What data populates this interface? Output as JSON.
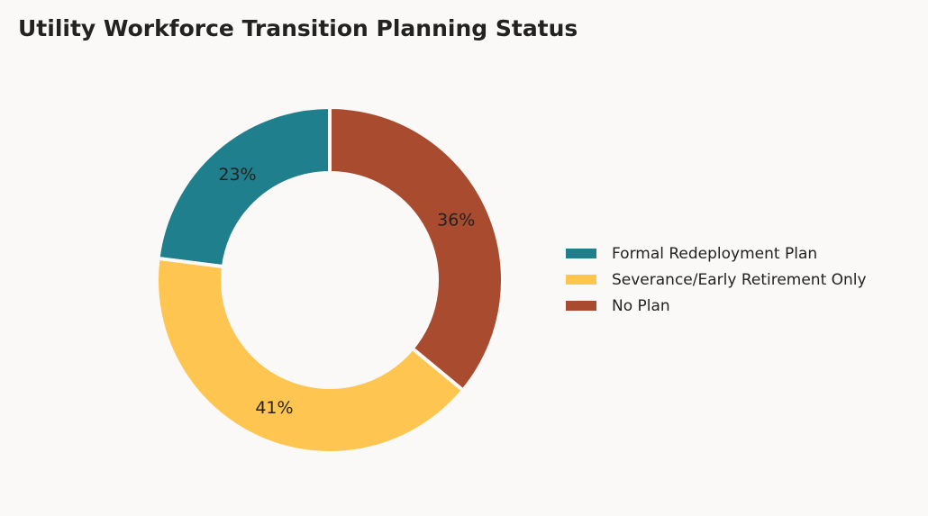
{
  "chart_data": {
    "type": "donut",
    "title": "Utility Workforce Transition Planning Status",
    "categories": [
      "Formal Redeployment Plan",
      "Severance/Early Retirement Only",
      "No Plan"
    ],
    "values": [
      23,
      41,
      36
    ],
    "value_labels": [
      "23%",
      "41%",
      "36%"
    ],
    "colors": [
      "#1f7f8c",
      "#ffc551",
      "#a84b2f"
    ],
    "legend": "right"
  }
}
